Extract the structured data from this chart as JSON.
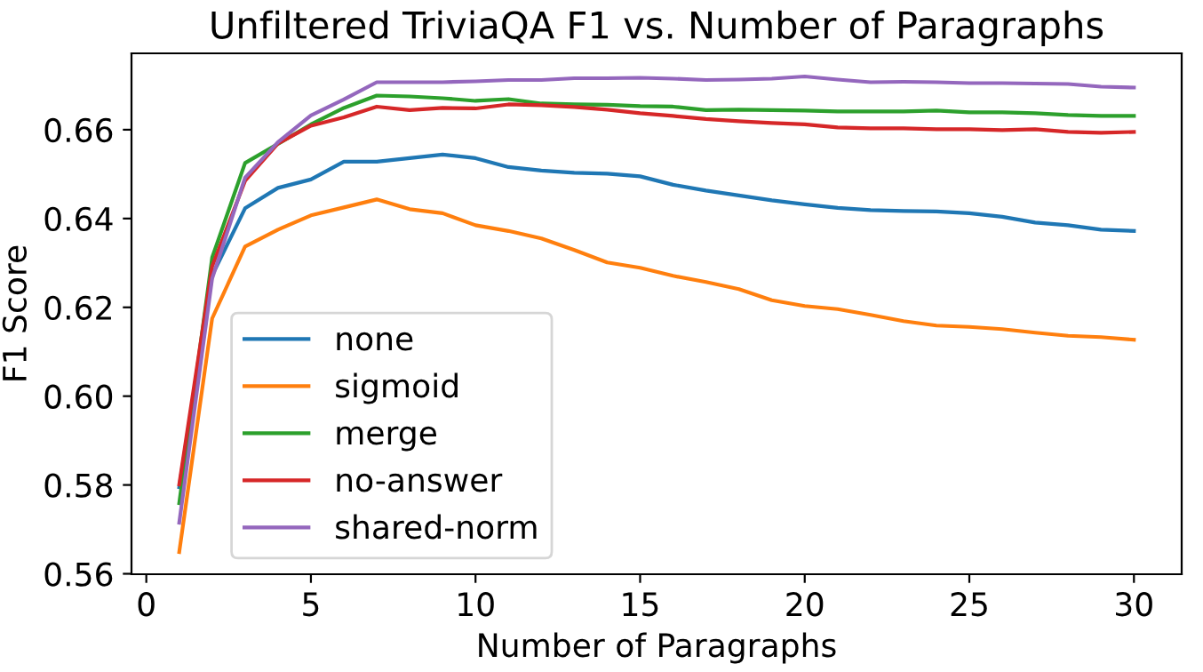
{
  "chart_data": {
    "type": "line",
    "title": "Unfiltered TriviaQA F1 vs. Number of Paragraphs",
    "xlabel": "Number of Paragraphs",
    "ylabel": "F1 Score",
    "x": [
      1,
      2,
      3,
      4,
      5,
      6,
      7,
      8,
      9,
      10,
      11,
      12,
      13,
      14,
      15,
      16,
      17,
      18,
      19,
      20,
      21,
      22,
      23,
      24,
      25,
      26,
      27,
      28,
      29,
      30
    ],
    "series": [
      {
        "name": "none",
        "color": "#1f77b4",
        "values": [
          0.5795,
          0.6272,
          0.6423,
          0.6469,
          0.6488,
          0.6528,
          0.6528,
          0.6536,
          0.6544,
          0.6536,
          0.6516,
          0.6508,
          0.6503,
          0.6501,
          0.6495,
          0.6476,
          0.6463,
          0.6452,
          0.6441,
          0.6432,
          0.6424,
          0.6419,
          0.6417,
          0.6416,
          0.6412,
          0.6404,
          0.6391,
          0.6385,
          0.6375,
          0.6372
        ]
      },
      {
        "name": "sigmoid",
        "color": "#ff7f0e",
        "values": [
          0.5649,
          0.6175,
          0.6337,
          0.6375,
          0.6407,
          0.6425,
          0.6443,
          0.6421,
          0.6412,
          0.6385,
          0.6372,
          0.6355,
          0.6329,
          0.6301,
          0.6289,
          0.6271,
          0.6257,
          0.6241,
          0.6216,
          0.6203,
          0.6196,
          0.6183,
          0.6169,
          0.6159,
          0.6156,
          0.6151,
          0.6143,
          0.6136,
          0.6133,
          0.6127
        ]
      },
      {
        "name": "merge",
        "color": "#2ca02c",
        "values": [
          0.5759,
          0.6312,
          0.6525,
          0.6568,
          0.6612,
          0.6649,
          0.6677,
          0.6675,
          0.6671,
          0.6665,
          0.6669,
          0.6659,
          0.6657,
          0.6656,
          0.6653,
          0.6652,
          0.6644,
          0.6645,
          0.6644,
          0.6643,
          0.6641,
          0.6641,
          0.6641,
          0.6643,
          0.6639,
          0.6639,
          0.6637,
          0.6633,
          0.6631,
          0.6631
        ]
      },
      {
        "name": "no-answer",
        "color": "#d62728",
        "values": [
          0.5801,
          0.6292,
          0.6485,
          0.6569,
          0.6609,
          0.6628,
          0.6652,
          0.6644,
          0.6649,
          0.6648,
          0.6657,
          0.6655,
          0.6651,
          0.6645,
          0.6637,
          0.6631,
          0.6624,
          0.6619,
          0.6615,
          0.6612,
          0.6605,
          0.6603,
          0.6603,
          0.6601,
          0.6601,
          0.6599,
          0.6601,
          0.6595,
          0.6593,
          0.6595
        ]
      },
      {
        "name": "shared-norm",
        "color": "#9467bd",
        "values": [
          0.5715,
          0.6265,
          0.6492,
          0.6572,
          0.6632,
          0.6668,
          0.6707,
          0.6707,
          0.6707,
          0.6709,
          0.6712,
          0.6712,
          0.6716,
          0.6716,
          0.6717,
          0.6715,
          0.6712,
          0.6713,
          0.6715,
          0.672,
          0.6713,
          0.6707,
          0.6708,
          0.6707,
          0.6705,
          0.6705,
          0.6704,
          0.6703,
          0.6697,
          0.6695
        ]
      }
    ],
    "xlim": [
      -0.45,
      31.45
    ],
    "ylim": [
      0.5599,
      0.6772
    ],
    "xticks": [
      0,
      5,
      10,
      15,
      20,
      25,
      30
    ],
    "yticks": [
      0.56,
      0.58,
      {
        "value": 0.6,
        "label": "0.60"
      },
      0.62,
      0.64,
      0.66
    ],
    "legend": "bottom left",
    "grid": false,
    "marker": "none",
    "line_style": "solid"
  }
}
